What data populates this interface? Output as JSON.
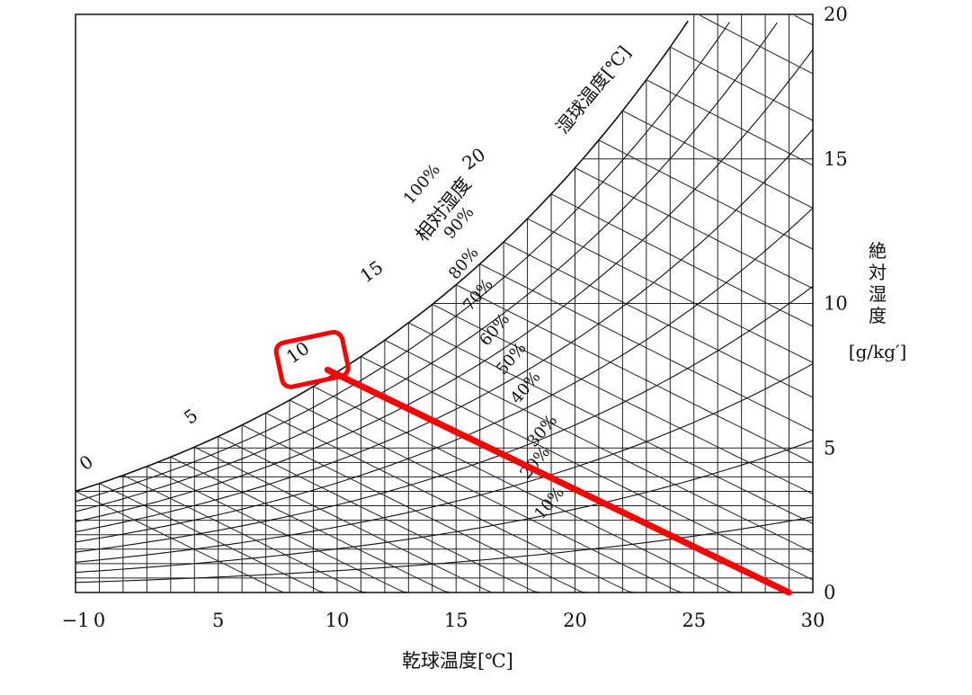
{
  "chart_data": {
    "type": "psychrometric",
    "title": "",
    "xlabel": "乾球温度[℃]",
    "ylabel_lines": [
      "絶",
      "対",
      "湿",
      "度",
      "[g/kg′]"
    ],
    "xlim": [
      -1,
      30
    ],
    "ylim": [
      0,
      20
    ],
    "x_ticks": [
      "−1",
      "0",
      "5",
      "10",
      "15",
      "20",
      "25",
      "30"
    ],
    "y_ticks": [
      "0",
      "5",
      "10",
      "15",
      "20"
    ],
    "grid": true,
    "rh_title": "相対湿度",
    "wet_bulb_title": "湿球温度[℃]",
    "rh_curves": [
      {
        "rh": 100,
        "label": "100%"
      },
      {
        "rh": 90,
        "label": "90%"
      },
      {
        "rh": 80,
        "label": "80%"
      },
      {
        "rh": 70,
        "label": "70%"
      },
      {
        "rh": 60,
        "label": "60%"
      },
      {
        "rh": 50,
        "label": "50%"
      },
      {
        "rh": 40,
        "label": "40%"
      },
      {
        "rh": 30,
        "label": "30%"
      },
      {
        "rh": 20,
        "label": "20%"
      },
      {
        "rh": 10,
        "label": "10%"
      }
    ],
    "wet_bulb_labels": [
      {
        "t": 0,
        "label": "0"
      },
      {
        "t": 5,
        "label": "5"
      },
      {
        "t": 10,
        "label": "10"
      },
      {
        "t": 15,
        "label": "15"
      },
      {
        "t": 20,
        "label": "20"
      }
    ],
    "highlight": {
      "wet_bulb_label": "10",
      "line": {
        "x": [
          9.6,
          29.0
        ],
        "y": [
          7.7,
          0
        ]
      },
      "color": "#ff0000"
    }
  }
}
